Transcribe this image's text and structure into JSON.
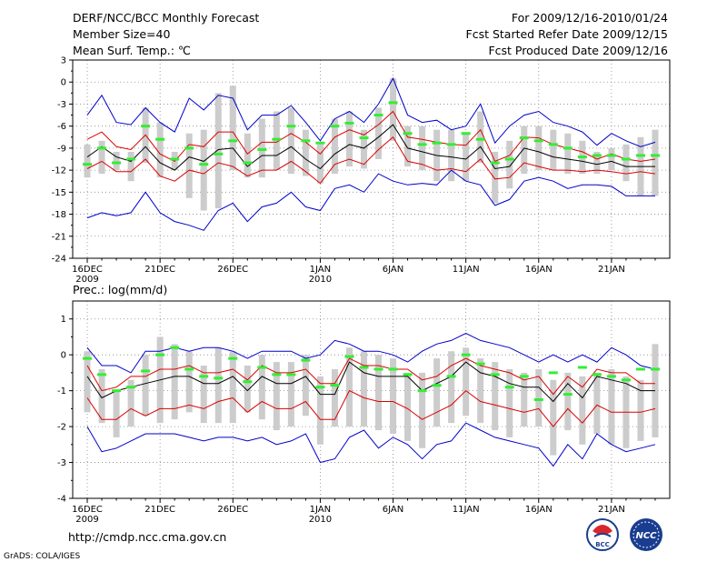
{
  "header": {
    "title": "DERF/NCC/BCC Monthly Forecast",
    "member_size": "Member Size=40",
    "variable": "Mean Surf. Temp.: ℃",
    "for_range": "For 2009/12/16-2010/01/24",
    "started": "Fcst Started Refer Date 2009/12/15",
    "produced": "Fcst Produced Date 2009/12/16"
  },
  "footer": {
    "url": "http://cmdp.ncc.cma.gov.cn",
    "credit": "GrADS: COLA/IGES",
    "logo_bcc": "BCC",
    "logo_ncc": "NCC"
  },
  "colors": {
    "blue": "#0000cc",
    "red": "#dd0000",
    "black": "#000000",
    "green": "#33ee33",
    "gray": "#cccccc",
    "grid": "#888888"
  },
  "chart_data": [
    {
      "type": "line",
      "title": "",
      "ylabel": "Mean Surf. Temp. (℃)",
      "xlabel": "",
      "x_tick_labels": [
        {
          "day": 0,
          "label": "16DEC",
          "sub": "2009"
        },
        {
          "day": 5,
          "label": "21DEC",
          "sub": ""
        },
        {
          "day": 10,
          "label": "26DEC",
          "sub": ""
        },
        {
          "day": 16,
          "label": "1JAN",
          "sub": "2010"
        },
        {
          "day": 21,
          "label": "6JAN",
          "sub": ""
        },
        {
          "day": 26,
          "label": "11JAN",
          "sub": ""
        },
        {
          "day": 31,
          "label": "16JAN",
          "sub": ""
        },
        {
          "day": 36,
          "label": "21JAN",
          "sub": ""
        }
      ],
      "xlim": [
        -1,
        40
      ],
      "ylim": [
        -24,
        3
      ],
      "yticks": [
        3,
        0,
        -3,
        -6,
        -9,
        -12,
        -15,
        -18,
        -21,
        -24
      ],
      "x": [
        0,
        1,
        2,
        3,
        4,
        5,
        6,
        7,
        8,
        9,
        10,
        11,
        12,
        13,
        14,
        15,
        16,
        17,
        18,
        19,
        20,
        21,
        22,
        23,
        24,
        25,
        26,
        27,
        28,
        29,
        30,
        31,
        32,
        33,
        34,
        35,
        36,
        37,
        38,
        39
      ],
      "series": [
        {
          "name": "max",
          "color": "blue",
          "values": [
            -4.5,
            -1.8,
            -5.5,
            -5.8,
            -3.5,
            -5.5,
            -6.8,
            -2.2,
            -3.8,
            -1.8,
            -2.2,
            -6.5,
            -4.5,
            -4.5,
            -3.2,
            -5.5,
            -8.0,
            -5.0,
            -4.0,
            -5.5,
            -3.0,
            0.5,
            -4.5,
            -5.5,
            -5.2,
            -6.5,
            -6.0,
            -3.0,
            -8.3,
            -6.0,
            -4.5,
            -4.0,
            -5.5,
            -6.0,
            -6.8,
            -8.6,
            -7.0,
            -8.0,
            -8.8,
            -8.2
          ]
        },
        {
          "name": "upper",
          "color": "red",
          "values": [
            -7.8,
            -6.8,
            -8.8,
            -9.2,
            -7.2,
            -9.8,
            -10.8,
            -8.5,
            -8.8,
            -6.8,
            -6.8,
            -9.8,
            -8.2,
            -8.2,
            -7.0,
            -8.2,
            -9.8,
            -7.5,
            -6.5,
            -7.2,
            -5.8,
            -4.0,
            -7.5,
            -7.8,
            -8.2,
            -8.5,
            -8.6,
            -6.5,
            -10.8,
            -10.0,
            -7.5,
            -7.6,
            -8.5,
            -9.0,
            -9.5,
            -10.5,
            -9.8,
            -10.5,
            -10.8,
            -10.5
          ]
        },
        {
          "name": "mean",
          "color": "black",
          "values": [
            -10.2,
            -8.8,
            -10.2,
            -10.8,
            -8.8,
            -11.0,
            -12.0,
            -10.2,
            -10.8,
            -9.2,
            -9.0,
            -11.5,
            -10.0,
            -10.0,
            -8.8,
            -10.5,
            -11.8,
            -9.8,
            -8.5,
            -9.0,
            -7.5,
            -5.8,
            -9.0,
            -9.5,
            -10.0,
            -10.2,
            -10.5,
            -8.8,
            -11.8,
            -11.5,
            -9.0,
            -9.5,
            -10.2,
            -10.5,
            -10.8,
            -11.2,
            -10.8,
            -11.5,
            -11.5,
            -11.5
          ]
        },
        {
          "name": "lower",
          "color": "red",
          "values": [
            -11.8,
            -10.8,
            -12.2,
            -12.2,
            -10.5,
            -12.8,
            -13.5,
            -12.0,
            -12.5,
            -11.0,
            -11.5,
            -12.8,
            -12.0,
            -12.0,
            -10.8,
            -12.2,
            -13.8,
            -11.2,
            -10.5,
            -11.2,
            -9.2,
            -7.5,
            -10.8,
            -11.2,
            -12.0,
            -11.8,
            -12.2,
            -10.5,
            -13.2,
            -13.0,
            -11.0,
            -11.5,
            -12.0,
            -12.0,
            -12.2,
            -12.0,
            -12.2,
            -12.5,
            -12.2,
            -12.5
          ]
        },
        {
          "name": "min",
          "color": "blue",
          "values": [
            -18.5,
            -17.8,
            -18.2,
            -17.8,
            -15.0,
            -17.8,
            -19.0,
            -19.5,
            -20.2,
            -17.5,
            -16.5,
            -19.0,
            -17.0,
            -16.5,
            -15.0,
            -17.0,
            -17.5,
            -14.5,
            -14.0,
            -15.0,
            -12.5,
            -13.5,
            -14.0,
            -13.8,
            -14.0,
            -12.0,
            -13.5,
            -14.0,
            -16.8,
            -16.0,
            -13.5,
            -13.0,
            -13.5,
            -14.5,
            -14.0,
            -14.0,
            -14.2,
            -15.5,
            -15.5,
            -15.5
          ]
        }
      ],
      "bars": [
        {
          "lo": -13.0,
          "hi": -8.5
        },
        {
          "lo": -12.5,
          "hi": -8.0
        },
        {
          "lo": -12.0,
          "hi": -9.5
        },
        {
          "lo": -13.5,
          "hi": -9.5
        },
        {
          "lo": -11.0,
          "hi": -3.5
        },
        {
          "lo": -13.0,
          "hi": -5.5
        },
        {
          "lo": -12.0,
          "hi": -9.5
        },
        {
          "lo": -15.8,
          "hi": -7.0
        },
        {
          "lo": -17.5,
          "hi": -6.5
        },
        {
          "lo": -17.2,
          "hi": -1.5
        },
        {
          "lo": -12.0,
          "hi": -0.5
        },
        {
          "lo": -13.0,
          "hi": -7.0
        },
        {
          "lo": -13.0,
          "hi": -5.0
        },
        {
          "lo": -12.0,
          "hi": -4.0
        },
        {
          "lo": -12.5,
          "hi": -3.5
        },
        {
          "lo": -12.8,
          "hi": -6.5
        },
        {
          "lo": -13.8,
          "hi": -8.5
        },
        {
          "lo": -12.5,
          "hi": -5.0
        },
        {
          "lo": -11.5,
          "hi": -4.0
        },
        {
          "lo": -11.8,
          "hi": -6.5
        },
        {
          "lo": -10.5,
          "hi": -3.5
        },
        {
          "lo": -8.0,
          "hi": 0.5
        },
        {
          "lo": -11.5,
          "hi": -6.0
        },
        {
          "lo": -12.0,
          "hi": -6.0
        },
        {
          "lo": -13.5,
          "hi": -6.5
        },
        {
          "lo": -13.5,
          "hi": -6.5
        },
        {
          "lo": -13.5,
          "hi": -7.0
        },
        {
          "lo": -11.0,
          "hi": -4.0
        },
        {
          "lo": -16.5,
          "hi": -9.5
        },
        {
          "lo": -14.5,
          "hi": -8.0
        },
        {
          "lo": -12.5,
          "hi": -6.0
        },
        {
          "lo": -12.0,
          "hi": -6.0
        },
        {
          "lo": -12.0,
          "hi": -6.5
        },
        {
          "lo": -12.5,
          "hi": -7.0
        },
        {
          "lo": -12.5,
          "hi": -8.0
        },
        {
          "lo": -12.5,
          "hi": -9.5
        },
        {
          "lo": -12.0,
          "hi": -9.0
        },
        {
          "lo": -13.5,
          "hi": -8.5
        },
        {
          "lo": -15.5,
          "hi": -7.5
        },
        {
          "lo": -15.5,
          "hi": -6.5
        }
      ],
      "markers": [
        -11.2,
        -9.0,
        -11.0,
        -10.5,
        -6.0,
        -7.8,
        -10.5,
        -9.0,
        -11.2,
        -9.8,
        -8.0,
        -11.0,
        -9.2,
        -7.8,
        -6.0,
        -8.0,
        -8.3,
        -6.0,
        -5.6,
        -7.6,
        -4.5,
        -2.8,
        -7.0,
        -8.5,
        -8.3,
        -8.5,
        -7.0,
        -7.8,
        -11.0,
        -10.5,
        -7.6,
        -8.0,
        -8.5,
        -9.0,
        -10.2,
        -10.0,
        -10.0,
        -10.5,
        -10.0,
        -10.0
      ]
    },
    {
      "type": "line",
      "title": "Prec.: log(mm/d)",
      "ylabel": "",
      "xlabel": "",
      "x_tick_labels": [
        {
          "day": 0,
          "label": "16DEC",
          "sub": "2009"
        },
        {
          "day": 5,
          "label": "21DEC",
          "sub": ""
        },
        {
          "day": 10,
          "label": "26DEC",
          "sub": ""
        },
        {
          "day": 16,
          "label": "1JAN",
          "sub": "2010"
        },
        {
          "day": 21,
          "label": "6JAN",
          "sub": ""
        },
        {
          "day": 26,
          "label": "11JAN",
          "sub": ""
        },
        {
          "day": 31,
          "label": "16JAN",
          "sub": ""
        },
        {
          "day": 36,
          "label": "21JAN",
          "sub": ""
        }
      ],
      "xlim": [
        -1,
        40
      ],
      "ylim": [
        -4,
        1.5
      ],
      "yticks": [
        1,
        0,
        -1,
        -2,
        -3,
        -4
      ],
      "x": [
        0,
        1,
        2,
        3,
        4,
        5,
        6,
        7,
        8,
        9,
        10,
        11,
        12,
        13,
        14,
        15,
        16,
        17,
        18,
        19,
        20,
        21,
        22,
        23,
        24,
        25,
        26,
        27,
        28,
        29,
        30,
        31,
        32,
        33,
        34,
        35,
        36,
        37,
        38,
        39
      ],
      "series": [
        {
          "name": "max",
          "color": "blue",
          "values": [
            0.2,
            -0.3,
            -0.3,
            -0.5,
            0.1,
            0.1,
            0.2,
            0.1,
            0.2,
            0.2,
            0.1,
            -0.1,
            0.1,
            0.1,
            0.1,
            -0.1,
            0.0,
            0.4,
            0.3,
            0.1,
            0.1,
            0.0,
            -0.2,
            0.1,
            0.3,
            0.4,
            0.6,
            0.4,
            0.3,
            0.2,
            0.0,
            -0.2,
            0.0,
            -0.2,
            0.0,
            -0.2,
            0.2,
            0.0,
            -0.3,
            -0.4
          ]
        },
        {
          "name": "upper",
          "color": "red",
          "values": [
            -0.3,
            -1.0,
            -0.9,
            -0.6,
            -0.6,
            -0.4,
            -0.4,
            -0.3,
            -0.5,
            -0.5,
            -0.4,
            -0.7,
            -0.3,
            -0.5,
            -0.5,
            -0.4,
            -0.8,
            -0.8,
            -0.1,
            -0.3,
            -0.3,
            -0.4,
            -0.4,
            -0.7,
            -0.6,
            -0.3,
            -0.1,
            -0.3,
            -0.4,
            -0.5,
            -0.7,
            -0.6,
            -1.1,
            -0.6,
            -0.9,
            -0.4,
            -0.5,
            -0.5,
            -0.8,
            -0.8
          ]
        },
        {
          "name": "mean",
          "color": "black",
          "values": [
            -0.6,
            -1.2,
            -1.0,
            -0.9,
            -0.8,
            -0.7,
            -0.6,
            -0.6,
            -0.8,
            -0.8,
            -0.6,
            -1.0,
            -0.6,
            -0.8,
            -0.8,
            -0.6,
            -1.1,
            -1.1,
            -0.2,
            -0.5,
            -0.6,
            -0.6,
            -0.6,
            -1.0,
            -0.8,
            -0.6,
            -0.2,
            -0.5,
            -0.6,
            -0.8,
            -0.9,
            -0.9,
            -1.3,
            -0.8,
            -1.2,
            -0.6,
            -0.7,
            -0.8,
            -1.0,
            -1.0
          ]
        },
        {
          "name": "lower",
          "color": "red",
          "values": [
            -1.2,
            -1.8,
            -1.8,
            -1.5,
            -1.7,
            -1.5,
            -1.5,
            -1.4,
            -1.5,
            -1.3,
            -1.2,
            -1.6,
            -1.3,
            -1.5,
            -1.5,
            -1.3,
            -1.8,
            -1.8,
            -1.0,
            -1.2,
            -1.3,
            -1.3,
            -1.5,
            -1.8,
            -1.6,
            -1.4,
            -1.0,
            -1.3,
            -1.4,
            -1.5,
            -1.6,
            -1.5,
            -2.0,
            -1.5,
            -1.9,
            -1.4,
            -1.6,
            -1.6,
            -1.6,
            -1.5
          ]
        },
        {
          "name": "min",
          "color": "blue",
          "values": [
            -2.0,
            -2.7,
            -2.6,
            -2.4,
            -2.2,
            -2.2,
            -2.2,
            -2.3,
            -2.4,
            -2.3,
            -2.3,
            -2.4,
            -2.3,
            -2.5,
            -2.4,
            -2.2,
            -3.0,
            -2.9,
            -2.3,
            -2.1,
            -2.6,
            -2.3,
            -2.5,
            -2.9,
            -2.5,
            -2.4,
            -1.9,
            -2.1,
            -2.3,
            -2.4,
            -2.5,
            -2.6,
            -3.1,
            -2.5,
            -2.9,
            -2.2,
            -2.5,
            -2.7,
            -2.6,
            -2.5
          ]
        }
      ],
      "bars": [
        {
          "lo": -1.6,
          "hi": 0.1
        },
        {
          "lo": -1.9,
          "hi": -0.4
        },
        {
          "lo": -2.3,
          "hi": -1.0
        },
        {
          "lo": -2.0,
          "hi": -0.7
        },
        {
          "lo": -1.7,
          "hi": 0.0
        },
        {
          "lo": -1.9,
          "hi": 0.5
        },
        {
          "lo": -1.8,
          "hi": 0.3
        },
        {
          "lo": -1.6,
          "hi": 0.1
        },
        {
          "lo": -1.9,
          "hi": -0.3
        },
        {
          "lo": -1.9,
          "hi": 0.2
        },
        {
          "lo": -1.9,
          "hi": 0.1
        },
        {
          "lo": -1.6,
          "hi": -0.3
        },
        {
          "lo": -1.8,
          "hi": 0.0
        },
        {
          "lo": -2.1,
          "hi": -0.2
        },
        {
          "lo": -2.0,
          "hi": -0.2
        },
        {
          "lo": -1.7,
          "hi": 0.0
        },
        {
          "lo": -2.5,
          "hi": -0.6
        },
        {
          "lo": -2.0,
          "hi": -0.4
        },
        {
          "lo": -2.0,
          "hi": 0.2
        },
        {
          "lo": -2.0,
          "hi": 0.1
        },
        {
          "lo": -2.1,
          "hi": 0.0
        },
        {
          "lo": -2.2,
          "hi": -0.1
        },
        {
          "lo": -2.4,
          "hi": -0.5
        },
        {
          "lo": -2.6,
          "hi": -0.5
        },
        {
          "lo": -2.0,
          "hi": -0.1
        },
        {
          "lo": -1.9,
          "hi": 0.1
        },
        {
          "lo": -1.7,
          "hi": 0.2
        },
        {
          "lo": -1.9,
          "hi": -0.1
        },
        {
          "lo": -2.1,
          "hi": -0.2
        },
        {
          "lo": -2.3,
          "hi": -0.4
        },
        {
          "lo": -2.0,
          "hi": -0.5
        },
        {
          "lo": -2.0,
          "hi": -0.4
        },
        {
          "lo": -2.8,
          "hi": -0.7
        },
        {
          "lo": -2.1,
          "hi": -0.5
        },
        {
          "lo": -2.5,
          "hi": -0.6
        },
        {
          "lo": -2.2,
          "hi": -0.5
        },
        {
          "lo": -2.5,
          "hi": -0.4
        },
        {
          "lo": -2.6,
          "hi": -0.6
        },
        {
          "lo": -2.4,
          "hi": -0.7
        },
        {
          "lo": -2.3,
          "hi": 0.3
        }
      ],
      "markers": [
        -0.1,
        -0.55,
        -1.0,
        -0.9,
        -0.45,
        0.0,
        0.2,
        -0.4,
        -0.6,
        -0.65,
        -0.1,
        -0.75,
        -0.35,
        -0.55,
        -0.55,
        -0.15,
        -0.9,
        -0.85,
        -0.05,
        -0.35,
        -0.4,
        -0.4,
        -0.55,
        -1.0,
        -0.85,
        -0.6,
        0.0,
        -0.25,
        -0.55,
        -0.9,
        -0.6,
        -1.25,
        -0.5,
        -1.1,
        -0.35,
        -0.55,
        -0.6,
        -0.7,
        -0.4,
        -0.4
      ]
    }
  ]
}
